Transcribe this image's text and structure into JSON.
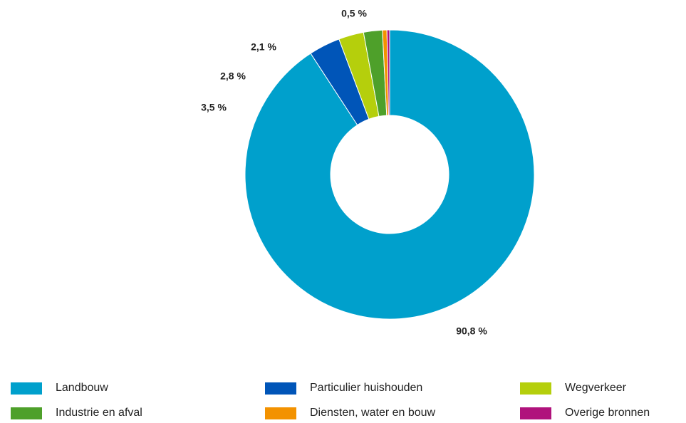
{
  "chart_data": {
    "type": "pie",
    "donut": true,
    "categories": [
      "Landbouw",
      "Particulier huishouden",
      "Wegverkeer",
      "Industrie en afval",
      "Diensten, water en bouw",
      "Overige bronnen"
    ],
    "values": [
      90.8,
      3.5,
      2.8,
      2.1,
      0.5,
      0.3
    ],
    "value_labels": [
      "90,8 %",
      "3,5 %",
      "2,8 %",
      "2,1 %",
      "0,5 %",
      null
    ],
    "colors": [
      "#00a0cc",
      "#0055b8",
      "#b5cf0c",
      "#4ea02a",
      "#f39200",
      "#b0127c"
    ]
  }
}
